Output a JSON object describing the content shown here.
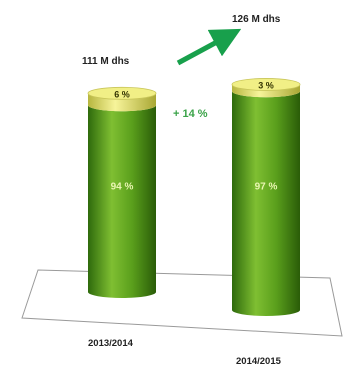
{
  "chart_data": {
    "type": "bar",
    "style": "3d-cylinder",
    "categories": [
      "2013/2014",
      "2014/2015"
    ],
    "totals": [
      {
        "category": "2013/2014",
        "label": "111 M dhs",
        "value": 111
      },
      {
        "category": "2014/2015",
        "label": "126 M dhs",
        "value": 126
      }
    ],
    "unit": "M dhs",
    "series": [
      {
        "values": [
          94,
          97
        ],
        "labels": [
          "94 %",
          "97 %"
        ],
        "color": "#5da11f"
      },
      {
        "values": [
          6,
          3
        ],
        "labels": [
          "6 %",
          "3 %"
        ],
        "color": "#f1ef86"
      }
    ],
    "growth": {
      "label": "+ 14 %",
      "color": "#3aa348"
    },
    "arrow_color": "#18a04c",
    "legend": "none",
    "grid": false
  }
}
